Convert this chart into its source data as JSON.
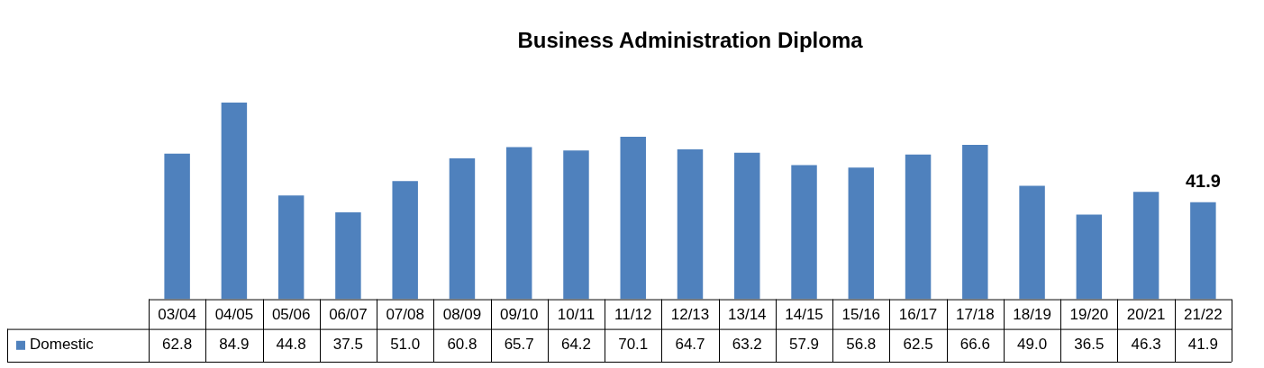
{
  "chart_data": {
    "type": "bar",
    "title": "Business Administration Diploma",
    "categories": [
      "03/04",
      "04/05",
      "05/06",
      "06/07",
      "07/08",
      "08/09",
      "09/10",
      "10/11",
      "11/12",
      "12/13",
      "13/14",
      "14/15",
      "15/16",
      "16/17",
      "17/18",
      "18/19",
      "19/20",
      "20/21",
      "21/22"
    ],
    "series": [
      {
        "name": "Domestic",
        "color": "#4f81bd",
        "values": [
          62.8,
          84.9,
          44.8,
          37.5,
          51.0,
          60.8,
          65.7,
          64.2,
          70.1,
          64.7,
          63.2,
          57.9,
          56.8,
          62.5,
          66.6,
          49.0,
          36.5,
          46.3,
          41.9
        ],
        "value_labels": [
          "62.8",
          "84.9",
          "44.8",
          "37.5",
          "51.0",
          "60.8",
          "65.7",
          "64.2",
          "70.1",
          "64.7",
          "63.2",
          "57.9",
          "56.8",
          "62.5",
          "66.6",
          "49.0",
          "36.5",
          "46.3",
          "41.9"
        ]
      }
    ],
    "annotations": [
      {
        "text": "41.9",
        "x": "21/22",
        "y": 41.9
      }
    ],
    "tick_labels": "x",
    "grid": false,
    "legend": "bottom"
  }
}
